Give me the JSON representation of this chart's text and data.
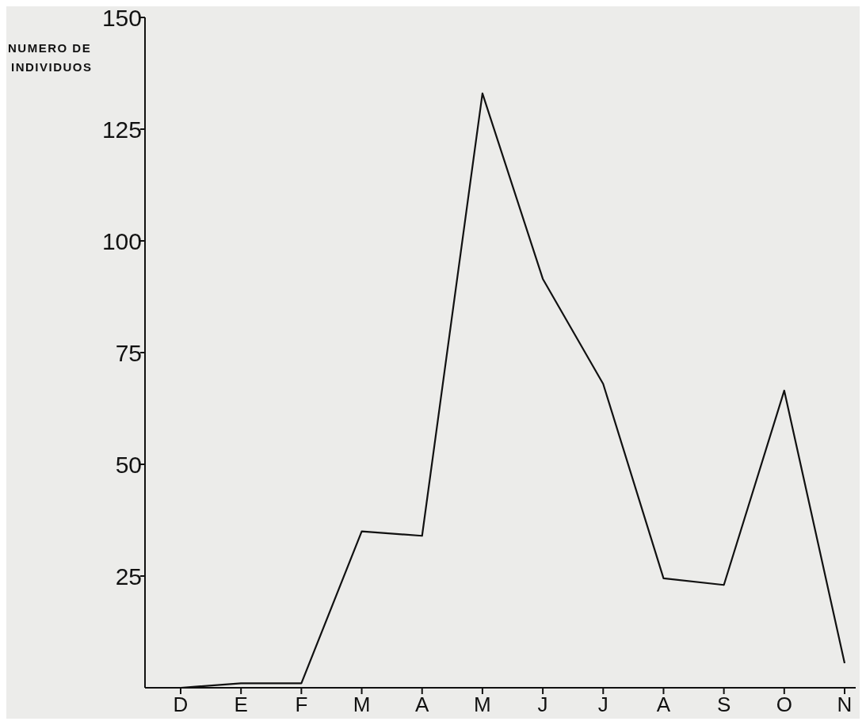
{
  "chart_data": {
    "type": "line",
    "ylabel": "NUMERO DE INDIVIDUOS",
    "categories": [
      "D",
      "E",
      "F",
      "M",
      "A",
      "M",
      "J",
      "J",
      "A",
      "S",
      "O",
      "N"
    ],
    "series": [
      {
        "color": "#111111",
        "values": [
          0,
          1,
          1,
          35,
          34,
          133,
          91.5,
          68,
          24.5,
          23,
          66.5,
          5.5
        ]
      }
    ],
    "ylim": [
      0,
      150
    ],
    "yticks": [
      25,
      50,
      75,
      100,
      125,
      150
    ],
    "grid": false,
    "marker": "none",
    "line_style": "solid"
  }
}
